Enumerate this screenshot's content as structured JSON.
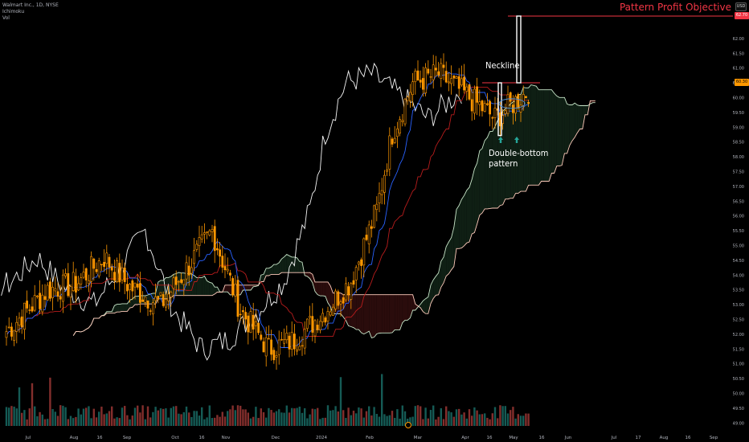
{
  "legend": {
    "symbol": "Walmart Inc., 1D, NYSE",
    "indicator": "Ichimoku",
    "volume": "Vol"
  },
  "currency": "USD",
  "annotations": {
    "neckline": "Neckline",
    "pattern_line1": "Double-bottom",
    "pattern_line2": "pattern",
    "objective": "Pattern Profit Objective"
  },
  "price_tags": {
    "target": "62.70",
    "current": "60.30"
  },
  "colors": {
    "background": "#000000",
    "candle_up": "#ff9800",
    "candle_down": "#ff9800",
    "conversion_line": "#2962ff",
    "base_line": "#b71c1c",
    "lagging_span": "#f5f5f5",
    "leading_span_a": "#c8e6c9",
    "leading_span_b": "#ffccbc",
    "cloud_bull": "#0f1f14",
    "cloud_bear": "#2a0c0c",
    "volume_up": "#26a69a",
    "volume_down": "#ef5350",
    "objective_line": "#f23645",
    "axis_text": "#b2b5be"
  },
  "chart_data": {
    "type": "candlestick",
    "title": "",
    "y_axis": {
      "ylim": [
        48.9,
        63.3
      ],
      "ticks": [
        "62.00",
        "61.50",
        "61.00",
        "60.50",
        "60.00",
        "59.50",
        "59.00",
        "58.50",
        "58.00",
        "57.50",
        "57.00",
        "56.50",
        "56.00",
        "55.50",
        "55.00",
        "54.50",
        "54.00",
        "53.50",
        "53.00",
        "52.50",
        "52.00",
        "51.50",
        "51.00",
        "50.50",
        "50.00",
        "49.50",
        "49.00"
      ]
    },
    "x_axis": {
      "labels": [
        "Jul",
        "Aug",
        "16",
        "Sep",
        "Oct",
        "16",
        "Nov",
        "Dec",
        "2024",
        "Feb",
        "Mar",
        "Apr",
        "16",
        "May",
        "16",
        "Jun",
        "Jul",
        "17",
        "Aug",
        "16",
        "Sep"
      ]
    },
    "series_close_approx": [
      {
        "date": "2023-07",
        "price": 52.1
      },
      {
        "date": "2023-08-01",
        "price": 53.5
      },
      {
        "date": "2023-08-16",
        "price": 53.7
      },
      {
        "date": "2023-09-01",
        "price": 54.6
      },
      {
        "date": "2023-09-15",
        "price": 53.6
      },
      {
        "date": "2023-10-02",
        "price": 53.0
      },
      {
        "date": "2023-10-16",
        "price": 54.2
      },
      {
        "date": "2023-10-31",
        "price": 55.5
      },
      {
        "date": "2023-11-15",
        "price": 52.8
      },
      {
        "date": "2023-12-01",
        "price": 51.5
      },
      {
        "date": "2023-12-15",
        "price": 51.8
      },
      {
        "date": "2024-01-02",
        "price": 52.8
      },
      {
        "date": "2024-01-16",
        "price": 53.8
      },
      {
        "date": "2024-02-01",
        "price": 56.2
      },
      {
        "date": "2024-02-16",
        "price": 58.8
      },
      {
        "date": "2024-03-01",
        "price": 60.5
      },
      {
        "date": "2024-03-15",
        "price": 60.8
      },
      {
        "date": "2024-04-01",
        "price": 60.0
      },
      {
        "date": "2024-04-16",
        "price": 59.3
      },
      {
        "date": "2024-05-01",
        "price": 60.3
      }
    ],
    "neckline_price": 60.5,
    "double_bottom_prices": [
      59.1,
      59.2
    ],
    "target_price": 62.7,
    "current_price": 60.3
  }
}
